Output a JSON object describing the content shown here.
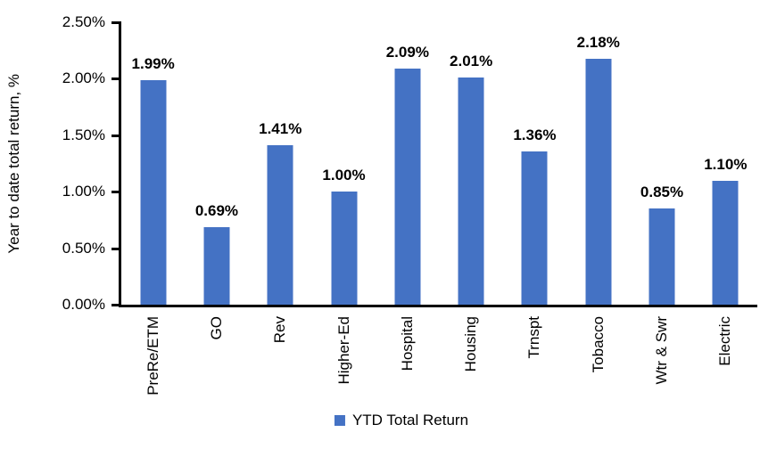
{
  "chart_data": {
    "type": "bar",
    "title": "",
    "xlabel": "",
    "ylabel": "Year to date total return, %",
    "categories": [
      "PreRe/ETM",
      "GO",
      "Rev",
      "Higher-Ed",
      "Hospital",
      "Housing",
      "Trnspt",
      "Tobacco",
      "Wtr & Swr",
      "Electric"
    ],
    "values": [
      1.99,
      0.69,
      1.41,
      1.0,
      2.09,
      2.01,
      1.36,
      2.18,
      0.85,
      1.1
    ],
    "value_labels": [
      "1.99%",
      "0.69%",
      "1.41%",
      "1.00%",
      "2.09%",
      "2.01%",
      "1.36%",
      "2.18%",
      "0.85%",
      "1.10%"
    ],
    "ylim": [
      0,
      2.5
    ],
    "yticks": [
      "0.00%",
      "0.50%",
      "1.00%",
      "1.50%",
      "2.00%",
      "2.50%"
    ],
    "ytick_values": [
      0,
      0.5,
      1.0,
      1.5,
      2.0,
      2.5
    ],
    "grid": false,
    "legend": [
      "YTD Total Return"
    ],
    "legend_position": "bottom",
    "bar_color": "#4472C4",
    "axis_color": "#000000",
    "text_color": "#000000",
    "background_color": "#FFFFFF"
  }
}
